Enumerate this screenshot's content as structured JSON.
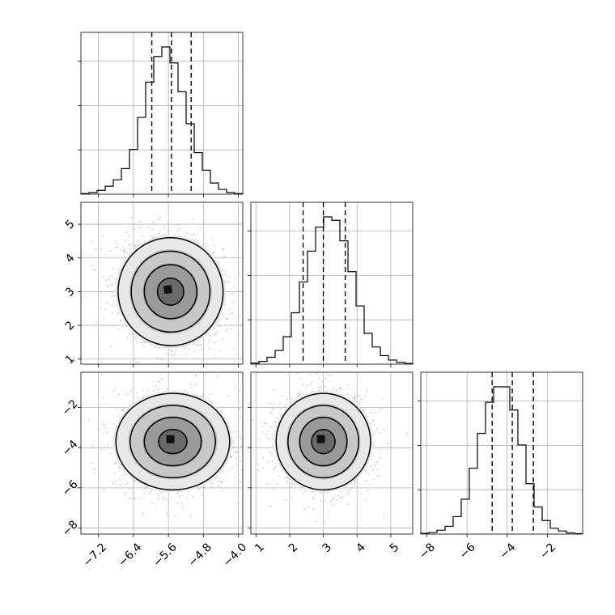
{
  "chart_data": {
    "type": "corner",
    "title": "",
    "grid": true,
    "parameters": [
      {
        "index": 0,
        "range": [
          -7.6,
          -3.9
        ],
        "ticks": [
          -7.2,
          -6.4,
          -5.6,
          -4.8,
          -4.0
        ],
        "tick_labels": [
          "−7.2",
          "−6.4",
          "−5.6",
          "−4.8",
          "−4.0"
        ],
        "quantiles": [
          -5.98,
          -5.53,
          -5.08
        ]
      },
      {
        "index": 1,
        "range": [
          0.85,
          5.65
        ],
        "ticks": [
          1,
          2,
          3,
          4,
          5
        ],
        "tick_labels": [
          "1",
          "2",
          "3",
          "4",
          "5"
        ],
        "quantiles": [
          2.4,
          3.0,
          3.65
        ]
      },
      {
        "index": 2,
        "range": [
          -8.3,
          -0.25
        ],
        "ticks": [
          -8,
          -6,
          -4,
          -2
        ],
        "tick_labels": [
          "−8",
          "−6",
          "−4",
          "−2"
        ],
        "quantiles": [
          -4.75,
          -3.75,
          -2.7
        ]
      }
    ],
    "histograms": [
      {
        "param": 0,
        "counts": [
          0.2,
          0.5,
          1.2,
          2.5,
          4.5,
          8,
          14,
          24,
          35,
          43,
          46,
          41,
          32,
          22,
          13,
          7.5,
          3.5,
          1.5,
          0.5,
          0.2
        ]
      },
      {
        "param": 1,
        "counts": [
          0.3,
          0.8,
          2,
          4,
          8,
          15,
          24,
          33,
          40,
          43,
          42,
          36,
          27,
          17,
          9,
          5,
          2.5,
          1.2,
          0.5,
          0.2
        ]
      },
      {
        "param": 2,
        "counts": [
          0.2,
          0.4,
          1,
          2,
          4.5,
          9,
          17,
          26,
          34,
          38,
          38,
          32,
          23,
          13,
          7,
          3.5,
          1.5,
          0.8,
          0.3,
          0.1
        ]
      }
    ],
    "pairs": [
      {
        "x_param": 0,
        "y_param": 1,
        "mean": [
          -5.55,
          3.0
        ],
        "sd": [
          0.6,
          0.8
        ],
        "corr": -0.2
      },
      {
        "x_param": 0,
        "y_param": 2,
        "mean": [
          -5.5,
          -3.7
        ],
        "sd": [
          0.65,
          1.2
        ],
        "corr": 0.0
      },
      {
        "x_param": 1,
        "y_param": 2,
        "mean": [
          3.0,
          -3.7
        ],
        "sd": [
          0.7,
          1.2
        ],
        "corr": 0.0
      }
    ],
    "contour_levels_sigma": [
      0.5,
      1.0,
      1.5,
      2.0
    ]
  }
}
